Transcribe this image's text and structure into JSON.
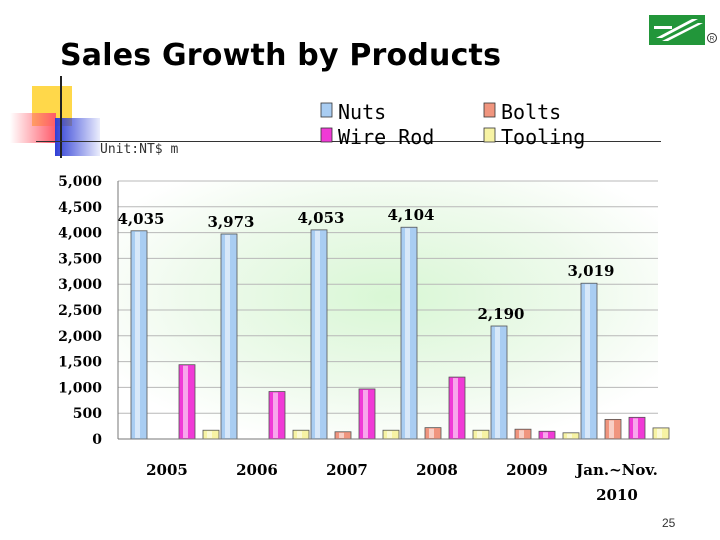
{
  "slide": {
    "title": "Sales Growth by Products",
    "page_number": "25"
  },
  "colors": {
    "nuts": "#a9cdf2",
    "bolts": "#f0957e",
    "wire_rod": "#f03ad6",
    "tooling": "#f7f3a4",
    "logo_green": "#22963a"
  },
  "chart_data": {
    "type": "bar",
    "title": "",
    "unit_label": "Unit:NT$ m",
    "xlabel": "",
    "ylabel": "",
    "ylim": [
      0,
      5000
    ],
    "y_ticks": [
      0,
      500,
      1000,
      1500,
      2000,
      2500,
      3000,
      3500,
      4000,
      4500,
      5000
    ],
    "y_tick_labels": [
      "0",
      "500",
      "1,000",
      "1,500",
      "2,000",
      "2,500",
      "3,000",
      "3,500",
      "4,000",
      "4,500",
      "5,000"
    ],
    "grid": true,
    "legend_position": "top",
    "categories": [
      [
        "2005"
      ],
      [
        "2006"
      ],
      [
        "2007"
      ],
      [
        "2008"
      ],
      [
        "2009"
      ],
      [
        "Jan.~Nov.",
        "2010"
      ]
    ],
    "series": [
      {
        "name": "Nuts",
        "color_key": "nuts",
        "values": [
          4035,
          3973,
          4053,
          4104,
          2190,
          3019
        ],
        "data_labels": [
          "4,035",
          "3,973",
          "4,053",
          "4,104",
          "2,190",
          "3,019"
        ]
      },
      {
        "name": "Bolts",
        "color_key": "bolts",
        "values": [
          0,
          0,
          140,
          220,
          190,
          380
        ],
        "data_labels": null
      },
      {
        "name": "Wire Rod",
        "color_key": "wire_rod",
        "values": [
          1440,
          920,
          970,
          1200,
          150,
          420
        ],
        "data_labels": null
      },
      {
        "name": "Tooling",
        "color_key": "tooling",
        "values": [
          170,
          170,
          170,
          170,
          120,
          215
        ],
        "data_labels": null
      }
    ],
    "legend_order": [
      "Nuts",
      "Bolts",
      "Wire Rod",
      "Tooling"
    ]
  }
}
